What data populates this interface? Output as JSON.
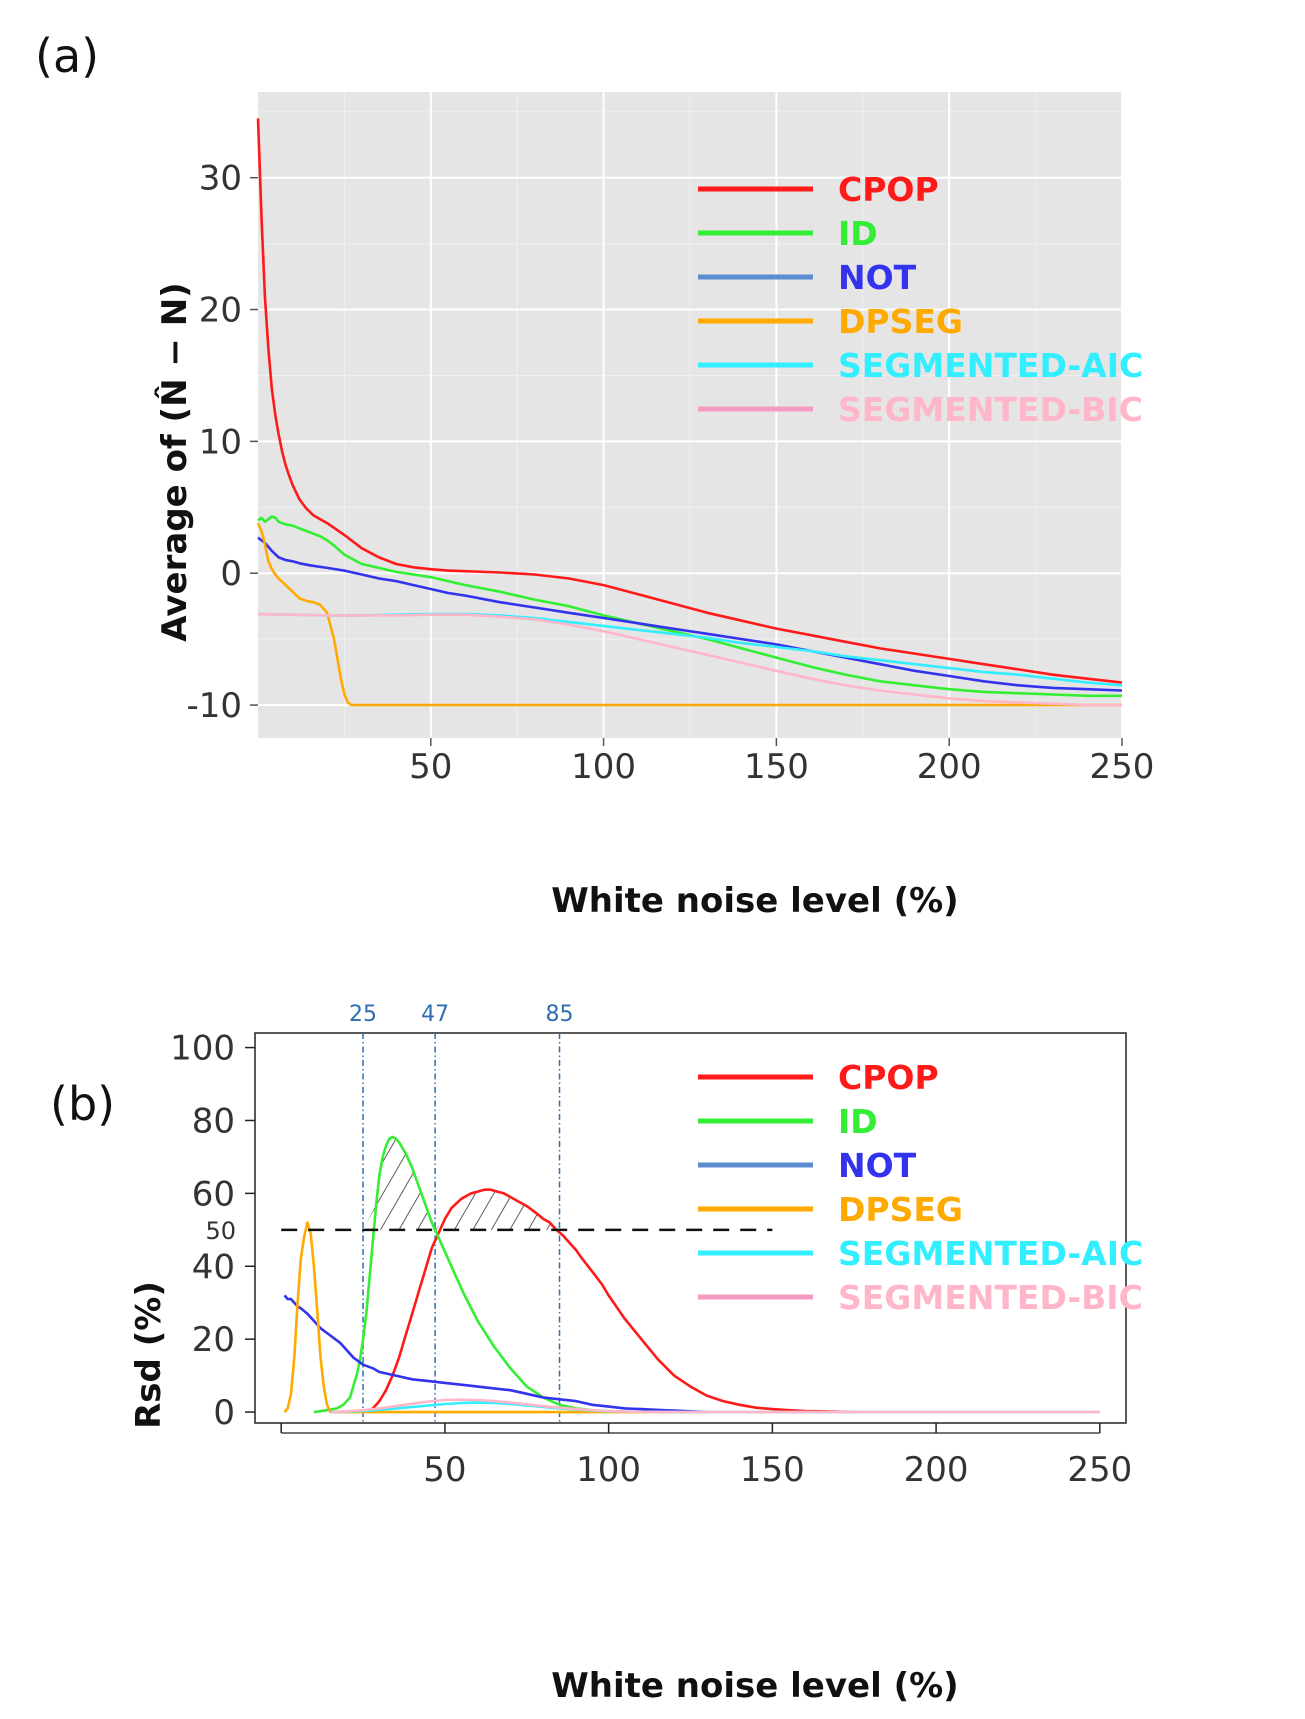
{
  "colors": {
    "CPOP": "#ff1a1a",
    "ID": "#33ee33",
    "NOT": "#3333ee",
    "NOT_legend": "#5b8ed0",
    "DPSEG": "#ffaa00",
    "SEGMENTED-AIC": "#33eeff",
    "SEGMENTED-BIC": "#ffb6c8",
    "SEGMENTED-BIC_legend": "#f59ac2",
    "panel_bg": "#e5e5e5",
    "vline": "#2f6fb0"
  },
  "chart_data": [
    {
      "panel": "(a)",
      "type": "line",
      "xlabel": "White noise level (%)",
      "ylabel": "Average of (N̂ − N)",
      "xlim": [
        0,
        250
      ],
      "ylim": [
        -12.5,
        36.5
      ],
      "xticks": [
        50,
        100,
        150,
        200,
        250
      ],
      "yticks": [
        -10,
        0,
        10,
        20,
        30
      ],
      "grid": true,
      "legend_position": "top-right",
      "series": [
        {
          "name": "CPOP",
          "x": [
            0,
            1,
            2,
            3,
            4,
            5,
            6,
            7,
            8,
            9,
            10,
            12,
            14,
            16,
            18,
            20,
            25,
            30,
            35,
            40,
            45,
            50,
            55,
            60,
            70,
            80,
            90,
            100,
            110,
            120,
            130,
            140,
            150,
            160,
            170,
            180,
            190,
            200,
            210,
            220,
            230,
            240,
            250
          ],
          "y": [
            34.5,
            27,
            21,
            17,
            14,
            12,
            10.5,
            9.2,
            8.2,
            7.4,
            6.7,
            5.6,
            4.9,
            4.4,
            4.1,
            3.8,
            2.9,
            1.9,
            1.2,
            0.7,
            0.45,
            0.3,
            0.2,
            0.15,
            0.05,
            -0.1,
            -0.4,
            -0.9,
            -1.6,
            -2.3,
            -3,
            -3.6,
            -4.2,
            -4.7,
            -5.2,
            -5.7,
            -6.1,
            -6.5,
            -6.9,
            -7.3,
            -7.7,
            -8.0,
            -8.3
          ]
        },
        {
          "name": "ID",
          "x": [
            0,
            1,
            2,
            3,
            4,
            5,
            6,
            7,
            8,
            10,
            12,
            14,
            16,
            18,
            20,
            22,
            25,
            30,
            35,
            40,
            45,
            50,
            55,
            60,
            70,
            80,
            90,
            100,
            110,
            120,
            130,
            140,
            150,
            160,
            170,
            180,
            190,
            200,
            210,
            220,
            230,
            240,
            250
          ],
          "y": [
            4.0,
            4.2,
            3.9,
            4.1,
            4.3,
            4.2,
            3.9,
            3.8,
            3.7,
            3.6,
            3.4,
            3.2,
            3.0,
            2.8,
            2.5,
            2.1,
            1.4,
            0.7,
            0.4,
            0.1,
            -0.1,
            -0.3,
            -0.6,
            -0.9,
            -1.4,
            -2.0,
            -2.5,
            -3.2,
            -3.8,
            -4.4,
            -5.0,
            -5.7,
            -6.4,
            -7.1,
            -7.7,
            -8.2,
            -8.5,
            -8.8,
            -9.0,
            -9.1,
            -9.2,
            -9.3,
            -9.3
          ]
        },
        {
          "name": "NOT",
          "x": [
            0,
            2,
            4,
            6,
            8,
            10,
            12,
            15,
            20,
            25,
            30,
            35,
            40,
            45,
            50,
            55,
            60,
            70,
            80,
            90,
            100,
            110,
            120,
            130,
            140,
            150,
            160,
            170,
            180,
            190,
            200,
            210,
            220,
            230,
            240,
            250
          ],
          "y": [
            2.7,
            2.3,
            1.7,
            1.2,
            1.0,
            0.9,
            0.75,
            0.6,
            0.4,
            0.2,
            -0.1,
            -0.4,
            -0.6,
            -0.9,
            -1.2,
            -1.5,
            -1.7,
            -2.2,
            -2.6,
            -3.0,
            -3.4,
            -3.8,
            -4.2,
            -4.6,
            -5.0,
            -5.4,
            -5.9,
            -6.4,
            -6.9,
            -7.4,
            -7.8,
            -8.2,
            -8.5,
            -8.7,
            -8.8,
            -8.9
          ]
        },
        {
          "name": "DPSEG",
          "x": [
            0,
            1,
            2,
            3,
            4,
            5,
            6,
            8,
            10,
            12,
            14,
            16,
            18,
            20,
            22,
            23,
            24,
            25,
            26,
            27,
            28,
            30,
            40,
            60,
            100,
            150,
            200,
            250
          ],
          "y": [
            3.8,
            3.2,
            2.2,
            0.9,
            0.3,
            -0.1,
            -0.4,
            -0.9,
            -1.4,
            -1.9,
            -2.1,
            -2.2,
            -2.4,
            -3.0,
            -5.0,
            -6.5,
            -8.0,
            -9.2,
            -9.8,
            -10,
            -10,
            -10,
            -10,
            -10,
            -10,
            -10,
            -10,
            -10
          ]
        },
        {
          "name": "SEGMENTED-AIC",
          "x": [
            0,
            10,
            20,
            30,
            40,
            50,
            60,
            70,
            80,
            90,
            100,
            110,
            120,
            130,
            140,
            150,
            160,
            170,
            180,
            190,
            200,
            210,
            220,
            230,
            240,
            250
          ],
          "y": [
            -3.1,
            -3.15,
            -3.2,
            -3.2,
            -3.15,
            -3.1,
            -3.1,
            -3.2,
            -3.4,
            -3.7,
            -4.0,
            -4.3,
            -4.6,
            -4.9,
            -5.3,
            -5.6,
            -5.9,
            -6.3,
            -6.6,
            -6.9,
            -7.2,
            -7.5,
            -7.7,
            -8.0,
            -8.3,
            -8.5
          ]
        },
        {
          "name": "SEGMENTED-BIC",
          "x": [
            0,
            10,
            20,
            30,
            40,
            50,
            60,
            70,
            80,
            90,
            100,
            110,
            120,
            130,
            140,
            150,
            160,
            170,
            180,
            190,
            200,
            210,
            220,
            230,
            240,
            250
          ],
          "y": [
            -3.1,
            -3.15,
            -3.2,
            -3.2,
            -3.2,
            -3.15,
            -3.15,
            -3.3,
            -3.5,
            -3.9,
            -4.4,
            -5.0,
            -5.6,
            -6.2,
            -6.8,
            -7.4,
            -8.0,
            -8.5,
            -8.9,
            -9.2,
            -9.5,
            -9.7,
            -9.8,
            -9.9,
            -10,
            -10
          ]
        }
      ]
    },
    {
      "panel": "(b)",
      "type": "line",
      "xlabel": "White noise level (%)",
      "ylabel": "Rsd  (%)",
      "xlim": [
        -8,
        258
      ],
      "ylim": [
        -3,
        104
      ],
      "xticks": [
        50,
        100,
        150,
        200,
        250
      ],
      "yticks": [
        0,
        20,
        40,
        60,
        80,
        100
      ],
      "threshold": {
        "y": 50,
        "label": "50",
        "x_end": 150
      },
      "vlines": [
        {
          "x": 25,
          "label": "25"
        },
        {
          "x": 47,
          "label": "47"
        },
        {
          "x": 85,
          "label": "85"
        }
      ],
      "grid": false,
      "legend_position": "top-right",
      "series": [
        {
          "name": "CPOP",
          "x": [
            26,
            28,
            30,
            32,
            34,
            36,
            38,
            40,
            42,
            44,
            46,
            48,
            50,
            52,
            55,
            58,
            60,
            62,
            64,
            66,
            68,
            70,
            72,
            75,
            78,
            80,
            82,
            84,
            86,
            88,
            90,
            92,
            95,
            98,
            100,
            105,
            110,
            115,
            120,
            125,
            130,
            135,
            140,
            145,
            150,
            155,
            160,
            165,
            170,
            175
          ],
          "y": [
            0,
            1,
            3,
            6,
            10,
            15,
            21,
            27,
            33,
            39,
            45,
            49,
            53,
            56,
            58.5,
            60,
            60.5,
            61,
            61,
            60.5,
            60,
            59,
            58,
            56.5,
            54.5,
            53,
            52,
            50,
            48.5,
            46.5,
            44.5,
            42,
            38.5,
            35,
            32,
            25.5,
            20,
            14.5,
            10,
            7,
            4.5,
            3,
            2,
            1.2,
            0.8,
            0.5,
            0.3,
            0.2,
            0.1,
            0
          ]
        },
        {
          "name": "ID",
          "x": [
            10,
            14,
            17,
            19,
            21,
            23,
            24,
            25,
            26,
            27,
            28,
            29,
            30,
            31,
            32,
            33,
            34,
            35,
            36,
            38,
            40,
            42,
            44,
            46,
            47,
            50,
            53,
            56,
            60,
            65,
            70,
            75,
            80,
            85,
            90,
            95,
            100
          ],
          "y": [
            0,
            0.5,
            1,
            2,
            4,
            10,
            14,
            20,
            27,
            37,
            47,
            57,
            65,
            70,
            73,
            75,
            75.5,
            75,
            74,
            71,
            67,
            62,
            57,
            52,
            50,
            44,
            38,
            32,
            25,
            18,
            12,
            7,
            4,
            2,
            1,
            0.5,
            0
          ]
        },
        {
          "name": "NOT",
          "x": [
            1,
            2,
            3,
            4,
            5,
            6,
            8,
            10,
            12,
            15,
            18,
            20,
            22,
            25,
            28,
            30,
            35,
            40,
            45,
            50,
            55,
            60,
            65,
            70,
            75,
            80,
            85,
            90,
            95,
            100,
            105,
            110,
            115,
            120,
            125,
            130
          ],
          "y": [
            32,
            31,
            31,
            30,
            29,
            28.5,
            27,
            25,
            23,
            21,
            19,
            17,
            15,
            13,
            12,
            11,
            10,
            9,
            8.5,
            8,
            7.5,
            7,
            6.5,
            6,
            5,
            4,
            3.5,
            3,
            2,
            1.5,
            1,
            0.8,
            0.6,
            0.4,
            0.2,
            0
          ]
        },
        {
          "name": "DPSEG",
          "x": [
            1,
            2,
            3,
            4,
            5,
            6,
            7,
            8,
            9,
            10,
            11,
            12,
            13,
            14,
            15,
            20,
            40,
            80,
            120
          ],
          "y": [
            0,
            1,
            5,
            15,
            30,
            42,
            48,
            52,
            49,
            40,
            28,
            15,
            7,
            2,
            0,
            0,
            0,
            0,
            0
          ]
        },
        {
          "name": "SEGMENTED-AIC",
          "x": [
            15,
            20,
            25,
            30,
            35,
            40,
            45,
            50,
            55,
            60,
            65,
            70,
            75,
            80,
            85,
            90,
            95,
            100,
            120,
            160,
            200,
            250
          ],
          "y": [
            0,
            0.1,
            0.3,
            0.6,
            1,
            1.4,
            1.8,
            2.2,
            2.5,
            2.6,
            2.5,
            2.2,
            1.8,
            1.4,
            1,
            0.7,
            0.4,
            0.2,
            0,
            0,
            0,
            0
          ]
        },
        {
          "name": "SEGMENTED-BIC",
          "x": [
            15,
            20,
            25,
            30,
            35,
            40,
            45,
            50,
            55,
            60,
            65,
            70,
            75,
            80,
            85,
            90,
            95,
            100,
            105,
            110,
            120,
            160,
            200,
            250
          ],
          "y": [
            0,
            0.2,
            0.5,
            1,
            1.6,
            2.3,
            2.9,
            3.3,
            3.4,
            3.3,
            3,
            2.6,
            2.1,
            1.6,
            1.2,
            0.8,
            0.5,
            0.3,
            0.15,
            0.05,
            0,
            0,
            0,
            0
          ]
        }
      ]
    }
  ],
  "legend": [
    "CPOP",
    "ID",
    "NOT",
    "DPSEG",
    "SEGMENTED-AIC",
    "SEGMENTED-BIC"
  ]
}
